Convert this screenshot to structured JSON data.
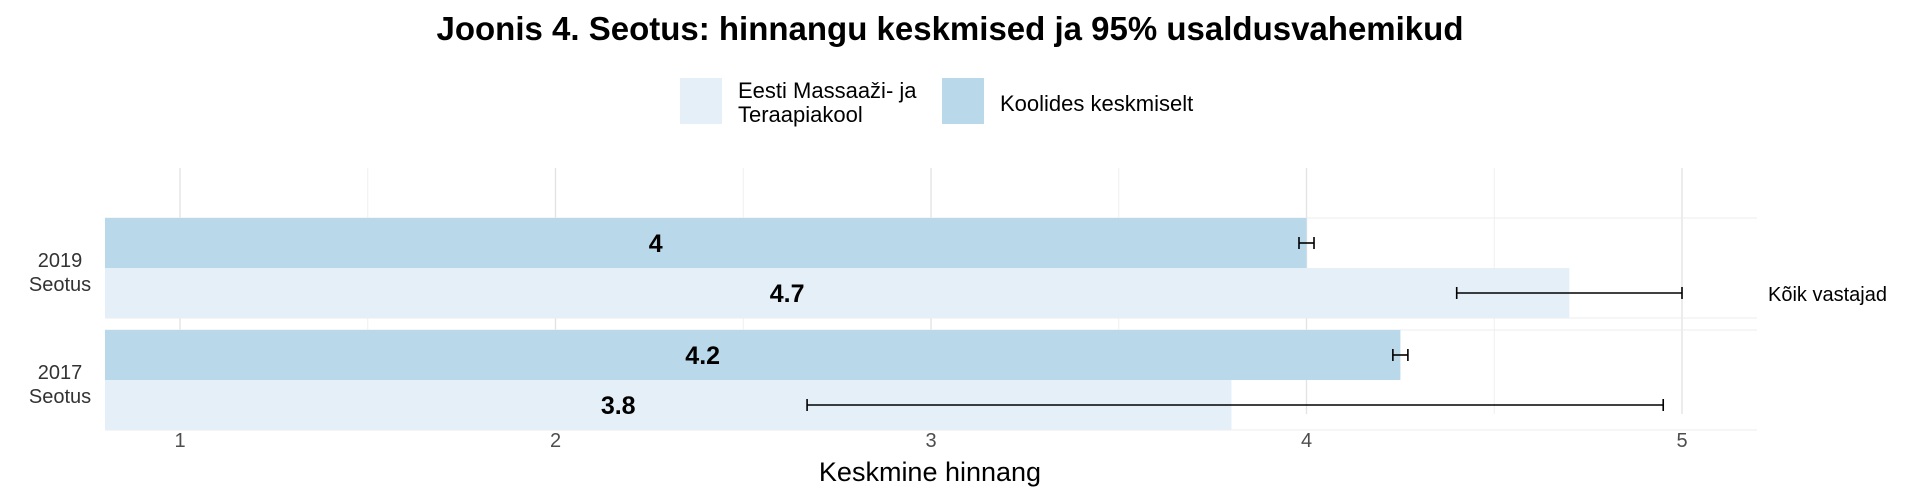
{
  "chart_data": {
    "type": "bar",
    "orientation": "horizontal",
    "title": "Joonis 4. Seotus: hinnangu keskmised ja 95% usaldusvahemikud",
    "xlabel": "Keskmine hinnang",
    "ylabel": "",
    "facet_label": "Kõik vastajad",
    "xlim": [
      0.8,
      5.2
    ],
    "xticks": [
      1,
      2,
      3,
      4,
      5
    ],
    "grid": true,
    "legend_position": "top",
    "categories": [
      {
        "year": "2019",
        "name": "Seotus"
      },
      {
        "year": "2017",
        "name": "Seotus"
      }
    ],
    "series": [
      {
        "name": "Koolides keskmiselt",
        "color": "#b9d9ea",
        "values": [
          4.0,
          4.25
        ],
        "labels": [
          "4",
          "4.2"
        ],
        "ci": [
          [
            3.98,
            4.02
          ],
          [
            4.23,
            4.27
          ]
        ]
      },
      {
        "name": "Eesti Massaaži- ja Teraapiakool",
        "legend_lines": [
          "Eesti Massaaži- ja",
          "Teraapiakool"
        ],
        "color": "#e5eff8",
        "values": [
          4.7,
          3.8
        ],
        "labels": [
          "4.7",
          "3.8"
        ],
        "ci": [
          [
            4.4,
            5.0
          ],
          [
            2.67,
            4.95
          ]
        ]
      }
    ]
  }
}
